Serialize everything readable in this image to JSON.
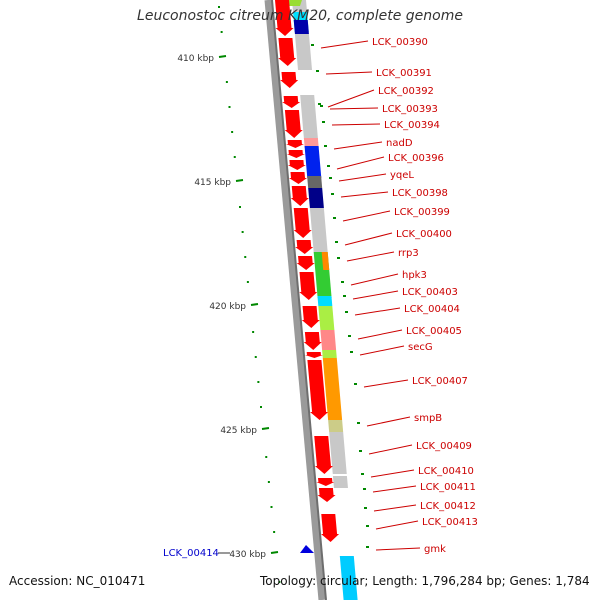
{
  "title": "Leuconostoc citreum KM20, complete genome",
  "footer": {
    "accession": "Accession: NC_010471",
    "topology": "Topology: circular; Length: 1,796,284 bp; Genes: 1,784"
  },
  "ruler_labels": [
    "410 kbp",
    "415 kbp",
    "420 kbp",
    "425 kbp",
    "430 kbp"
  ],
  "highlight_gene": "LCK_00414",
  "gene_labels": [
    "LCK_00390",
    "LCK_00391",
    "LCK_00392",
    "LCK_00393",
    "LCK_00394",
    "nadD",
    "LCK_00396",
    "yqeL",
    "LCK_00398",
    "LCK_00399",
    "LCK_00400",
    "rrp3",
    "hpk3",
    "LCK_00403",
    "LCK_00404",
    "LCK_00405",
    "secG",
    "LCK_00407",
    "smpB",
    "LCK_00409",
    "LCK_00410",
    "LCK_00411",
    "LCK_00412",
    "LCK_00413",
    "gmk"
  ],
  "colors": {
    "gene_arrow": "#ff0000",
    "label": "#cc0000",
    "ruler_tick": "#008800",
    "highlight_label": "#0000cc",
    "backbone": "#999999"
  }
}
